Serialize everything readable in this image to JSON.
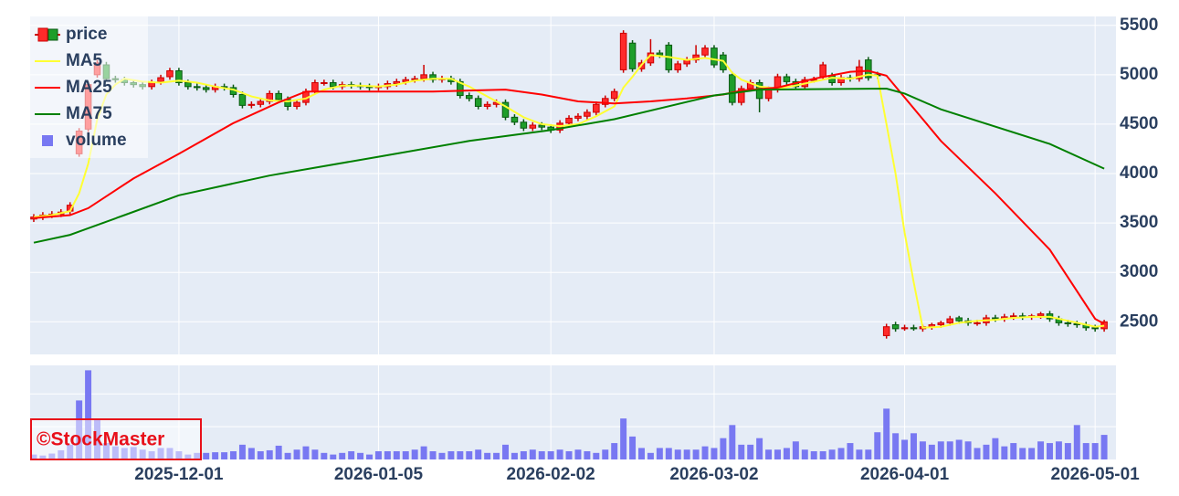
{
  "chart_data": {
    "type": "candlestick",
    "name": "price",
    "x": [
      "2025-11-06",
      "2025-11-07",
      "2025-11-10",
      "2025-11-11",
      "2025-11-12",
      "2025-11-13",
      "2025-11-14",
      "2025-11-17",
      "2025-11-18",
      "2025-11-19",
      "2025-11-20",
      "2025-11-21",
      "2025-11-25",
      "2025-11-26",
      "2025-11-27",
      "2025-11-28",
      "2025-12-01",
      "2025-12-02",
      "2025-12-03",
      "2025-12-04",
      "2025-12-05",
      "2025-12-08",
      "2025-12-09",
      "2025-12-10",
      "2025-12-11",
      "2025-12-12",
      "2025-12-15",
      "2025-12-16",
      "2025-12-17",
      "2025-12-18",
      "2025-12-19",
      "2025-12-22",
      "2025-12-23",
      "2025-12-24",
      "2025-12-25",
      "2025-12-26",
      "2025-12-29",
      "2025-12-30",
      "2026-01-05",
      "2026-01-06",
      "2026-01-07",
      "2026-01-08",
      "2026-01-09",
      "2026-01-13",
      "2026-01-14",
      "2026-01-15",
      "2026-01-16",
      "2026-01-19",
      "2026-01-20",
      "2026-01-21",
      "2026-01-22",
      "2026-01-23",
      "2026-01-26",
      "2026-01-27",
      "2026-01-28",
      "2026-01-29",
      "2026-01-30",
      "2026-02-02",
      "2026-02-03",
      "2026-02-04",
      "2026-02-05",
      "2026-02-06",
      "2026-02-09",
      "2026-02-10",
      "2026-02-12",
      "2026-02-13",
      "2026-02-16",
      "2026-02-17",
      "2026-02-18",
      "2026-02-19",
      "2026-02-20",
      "2026-02-24",
      "2026-02-25",
      "2026-02-26",
      "2026-02-27",
      "2026-03-02",
      "2026-03-03",
      "2026-03-04",
      "2026-03-05",
      "2026-03-06",
      "2026-03-09",
      "2026-03-10",
      "2026-03-11",
      "2026-03-12",
      "2026-03-13",
      "2026-03-16",
      "2026-03-17",
      "2026-03-18",
      "2026-03-19",
      "2026-03-23",
      "2026-03-24",
      "2026-03-25",
      "2026-03-26",
      "2026-03-27",
      "2026-03-30",
      "2026-03-31",
      "2026-04-01",
      "2026-04-02",
      "2026-04-03",
      "2026-04-06",
      "2026-04-07",
      "2026-04-08",
      "2026-04-09",
      "2026-04-10",
      "2026-04-13",
      "2026-04-14",
      "2026-04-15",
      "2026-04-16",
      "2026-04-17",
      "2026-04-20",
      "2026-04-21",
      "2026-04-22",
      "2026-04-23",
      "2026-04-24",
      "2026-04-27",
      "2026-04-28",
      "2026-04-30",
      "2026-05-01",
      "2026-05-07"
    ],
    "open": [
      3540,
      3560,
      3580,
      3590,
      3620,
      4200,
      4450,
      5000,
      5100,
      4960,
      4950,
      4920,
      4900,
      4880,
      4930,
      4980,
      5040,
      4920,
      4880,
      4870,
      4850,
      4880,
      4870,
      4800,
      4690,
      4700,
      4730,
      4810,
      4750,
      4680,
      4720,
      4830,
      4920,
      4920,
      4880,
      4900,
      4890,
      4880,
      4870,
      4880,
      4910,
      4930,
      4950,
      4960,
      5000,
      4950,
      4960,
      4930,
      4790,
      4760,
      4680,
      4700,
      4720,
      4570,
      4520,
      4460,
      4490,
      4470,
      4440,
      4510,
      4560,
      4580,
      4620,
      4700,
      4760,
      5050,
      5320,
      5060,
      5120,
      5220,
      5300,
      5050,
      5110,
      5150,
      5200,
      5270,
      5200,
      5000,
      4720,
      4860,
      4920,
      4760,
      4850,
      4980,
      4930,
      4880,
      4950,
      4980,
      4990,
      4920,
      4970,
      4960,
      5150,
      5000,
      2360,
      2470,
      2430,
      2440,
      2430,
      2450,
      2470,
      2490,
      2540,
      2510,
      2490,
      2490,
      2540,
      2530,
      2550,
      2560,
      2550,
      2560,
      2580,
      2530,
      2490,
      2480,
      2470,
      2440,
      2430
    ],
    "high": [
      3590,
      3610,
      3620,
      3640,
      3710,
      4460,
      4930,
      5150,
      5130,
      4990,
      4980,
      4950,
      4930,
      4950,
      5000,
      5070,
      5070,
      4950,
      4910,
      4900,
      4910,
      4910,
      4900,
      4830,
      4730,
      4760,
      4840,
      4840,
      4780,
      4750,
      4860,
      4950,
      4950,
      4950,
      4930,
      4930,
      4920,
      4910,
      4910,
      4940,
      4960,
      4980,
      4990,
      5100,
      5030,
      4990,
      4990,
      4960,
      4820,
      4790,
      4730,
      4750,
      4750,
      4600,
      4550,
      4520,
      4520,
      4500,
      4540,
      4590,
      4610,
      4650,
      4730,
      4790,
      4860,
      5450,
      5350,
      5150,
      5360,
      5250,
      5330,
      5140,
      5180,
      5300,
      5300,
      5300,
      5230,
      5030,
      4890,
      4950,
      4950,
      4880,
      5010,
      5010,
      4960,
      4980,
      4980,
      5130,
      5020,
      5000,
      5000,
      5150,
      5180,
      5030,
      2480,
      2500,
      2470,
      2470,
      2470,
      2490,
      2510,
      2560,
      2560,
      2540,
      2520,
      2570,
      2570,
      2580,
      2590,
      2590,
      2580,
      2600,
      2610,
      2560,
      2520,
      2510,
      2500,
      2470,
      2520
    ],
    "low": [
      3510,
      3530,
      3550,
      3560,
      3590,
      4170,
      4420,
      4970,
      4930,
      4920,
      4890,
      4870,
      4850,
      4850,
      4900,
      4950,
      4890,
      4850,
      4840,
      4820,
      4820,
      4840,
      4770,
      4660,
      4660,
      4670,
      4700,
      4720,
      4640,
      4650,
      4690,
      4800,
      4890,
      4850,
      4850,
      4860,
      4850,
      4840,
      4840,
      4850,
      4880,
      4900,
      4920,
      4930,
      4920,
      4920,
      4900,
      4760,
      4730,
      4650,
      4650,
      4670,
      4540,
      4490,
      4430,
      4430,
      4440,
      4410,
      4410,
      4480,
      4530,
      4550,
      4590,
      4670,
      4730,
      5020,
      5030,
      5030,
      5090,
      5170,
      5020,
      5020,
      5080,
      5120,
      5170,
      5070,
      5020,
      4690,
      4690,
      4830,
      4620,
      4730,
      4820,
      4900,
      4850,
      4850,
      4920,
      4950,
      4890,
      4890,
      4930,
      4930,
      4940,
      4960,
      2330,
      2400,
      2410,
      2410,
      2400,
      2420,
      2440,
      2460,
      2480,
      2460,
      2460,
      2460,
      2500,
      2500,
      2520,
      2520,
      2520,
      2530,
      2500,
      2460,
      2450,
      2440,
      2410,
      2400,
      2400
    ],
    "close": [
      3560,
      3580,
      3590,
      3610,
      3680,
      4430,
      4900,
      5120,
      4960,
      4950,
      4920,
      4900,
      4880,
      4920,
      4970,
      5040,
      4920,
      4880,
      4870,
      4850,
      4880,
      4870,
      4800,
      4690,
      4700,
      4730,
      4810,
      4750,
      4680,
      4720,
      4830,
      4920,
      4920,
      4880,
      4900,
      4890,
      4880,
      4870,
      4880,
      4910,
      4930,
      4950,
      4960,
      5000,
      4950,
      4960,
      4930,
      4790,
      4760,
      4680,
      4700,
      4720,
      4570,
      4520,
      4460,
      4490,
      4470,
      4440,
      4510,
      4560,
      4580,
      4620,
      4700,
      4760,
      4830,
      5420,
      5060,
      5120,
      5220,
      5200,
      5050,
      5110,
      5150,
      5200,
      5270,
      5100,
      5050,
      4720,
      4860,
      4920,
      4760,
      4850,
      4980,
      4930,
      4880,
      4950,
      4950,
      5100,
      4920,
      4970,
      4960,
      5080,
      4970,
      4990,
      2450,
      2430,
      2440,
      2430,
      2450,
      2470,
      2490,
      2530,
      2510,
      2490,
      2490,
      2540,
      2530,
      2550,
      2560,
      2550,
      2560,
      2580,
      2530,
      2490,
      2480,
      2470,
      2440,
      2430,
      2500
    ],
    "increasing_color": "#ff2a2a",
    "decreasing_color": "#1e9e2a",
    "ylim": [
      2170,
      5590
    ],
    "yticks": [
      2500,
      3000,
      3500,
      4000,
      4500,
      5000,
      5500
    ],
    "xticks": [
      "2025-12-01",
      "2026-01-05",
      "2026-02-02",
      "2026-03-02",
      "2026-04-01",
      "2026-05-01"
    ],
    "grid": true,
    "legend": "top-left",
    "lines": [
      {
        "name": "MA5",
        "color": "#ffff33",
        "x": [
          "2025-11-06",
          "2025-11-10",
          "2025-11-12",
          "2025-11-13",
          "2025-11-14",
          "2025-11-17",
          "2025-11-18",
          "2025-11-19",
          "2025-11-20",
          "2025-11-25",
          "2025-11-27",
          "2025-12-01",
          "2025-12-03",
          "2025-12-05",
          "2025-12-09",
          "2025-12-11",
          "2025-12-15",
          "2025-12-17",
          "2025-12-19",
          "2025-12-23",
          "2025-12-25",
          "2025-12-29",
          "2026-01-05",
          "2026-01-07",
          "2026-01-09",
          "2026-01-14",
          "2026-01-16",
          "2026-01-20",
          "2026-01-22",
          "2026-01-26",
          "2026-01-28",
          "2026-01-30",
          "2026-02-03",
          "2026-02-05",
          "2026-02-09",
          "2026-02-12",
          "2026-02-13",
          "2026-02-16",
          "2026-02-17",
          "2026-02-18",
          "2026-02-20",
          "2026-02-25",
          "2026-02-27",
          "2026-03-03",
          "2026-03-04",
          "2026-03-05",
          "2026-03-09",
          "2026-03-11",
          "2026-03-13",
          "2026-03-17",
          "2026-03-19",
          "2026-03-24",
          "2026-03-26",
          "2026-03-27",
          "2026-03-30",
          "2026-03-31",
          "2026-04-01",
          "2026-04-02",
          "2026-04-03",
          "2026-04-07",
          "2026-04-09",
          "2026-04-13",
          "2026-04-15",
          "2026-04-17",
          "2026-04-21",
          "2026-04-23",
          "2026-04-27",
          "2026-04-30",
          "2026-05-01",
          "2026-05-07"
        ],
        "values": [
          3560,
          3580,
          3620,
          3800,
          4100,
          4550,
          4800,
          4900,
          4960,
          4930,
          4920,
          4940,
          4920,
          4880,
          4850,
          4780,
          4740,
          4730,
          4760,
          4850,
          4890,
          4890,
          4880,
          4900,
          4940,
          4960,
          4960,
          4880,
          4780,
          4680,
          4570,
          4500,
          4480,
          4500,
          4580,
          4680,
          4870,
          4980,
          5100,
          5200,
          5180,
          5150,
          5170,
          5140,
          5020,
          4950,
          4880,
          4860,
          4890,
          4930,
          4970,
          4960,
          5000,
          4990,
          4500,
          4000,
          3400,
          2900,
          2440,
          2450,
          2490,
          2510,
          2520,
          2540,
          2550,
          2550,
          2510,
          2470,
          2450,
          2460
        ]
      },
      {
        "name": "MA25",
        "color": "#ff0000",
        "x": [
          "2025-11-06",
          "2025-11-12",
          "2025-11-14",
          "2025-11-21",
          "2025-12-01",
          "2025-12-09",
          "2025-12-16",
          "2025-12-19",
          "2025-12-29",
          "2026-01-14",
          "2026-01-26",
          "2026-01-30",
          "2026-02-05",
          "2026-02-12",
          "2026-02-18",
          "2026-02-25",
          "2026-03-03",
          "2026-03-05",
          "2026-03-11",
          "2026-03-17",
          "2026-03-24",
          "2026-03-26",
          "2026-03-30",
          "2026-04-07",
          "2026-04-15",
          "2026-04-23",
          "2026-05-01",
          "2026-05-07"
        ],
        "values": [
          3550,
          3580,
          3650,
          3950,
          4200,
          4510,
          4720,
          4830,
          4830,
          4830,
          4850,
          4800,
          4730,
          4710,
          4730,
          4760,
          4800,
          4840,
          4870,
          4960,
          5030,
          5040,
          4990,
          4330,
          3800,
          3230,
          2530,
          2480
        ]
      },
      {
        "name": "MA75",
        "color": "#008000",
        "x": [
          "2025-11-06",
          "2025-11-12",
          "2025-11-20",
          "2025-12-01",
          "2025-12-15",
          "2026-01-05",
          "2026-01-20",
          "2026-02-02",
          "2026-02-12",
          "2026-03-02",
          "2026-03-09",
          "2026-03-30",
          "2026-04-01",
          "2026-04-07",
          "2026-04-23",
          "2026-05-07"
        ],
        "values": [
          3300,
          3380,
          3580,
          3780,
          3980,
          4170,
          4330,
          4440,
          4550,
          4790,
          4850,
          4860,
          4810,
          4650,
          4300,
          4050
        ]
      }
    ],
    "volume": {
      "name": "volume",
      "color": "#7878f2",
      "values": [
        150000,
        120000,
        180000,
        280000,
        450000,
        1800000,
        2720000,
        1200000,
        500000,
        400000,
        350000,
        380000,
        300000,
        250000,
        350000,
        350000,
        250000,
        150000,
        200000,
        200000,
        220000,
        220000,
        250000,
        450000,
        350000,
        250000,
        280000,
        420000,
        200000,
        300000,
        400000,
        300000,
        200000,
        150000,
        200000,
        250000,
        200000,
        150000,
        250000,
        250000,
        250000,
        250000,
        300000,
        400000,
        250000,
        200000,
        250000,
        250000,
        250000,
        300000,
        200000,
        200000,
        450000,
        200000,
        250000,
        300000,
        250000,
        250000,
        300000,
        250000,
        300000,
        250000,
        200000,
        300000,
        500000,
        1250000,
        700000,
        350000,
        200000,
        350000,
        350000,
        300000,
        300000,
        300000,
        400000,
        350000,
        650000,
        1050000,
        450000,
        450000,
        650000,
        300000,
        300000,
        350000,
        550000,
        300000,
        250000,
        250000,
        300000,
        350000,
        500000,
        300000,
        300000,
        830000,
        1550000,
        800000,
        600000,
        800000,
        550000,
        450000,
        550000,
        550000,
        600000,
        550000,
        350000,
        450000,
        650000,
        400000,
        500000,
        350000,
        350000,
        550000,
        500000,
        550000,
        500000,
        1050000,
        500000,
        500000,
        750000
      ],
      "ylim": [
        0,
        2870000
      ],
      "grid": [
        1000000,
        2000000
      ]
    },
    "watermark": "©StockMaster"
  }
}
